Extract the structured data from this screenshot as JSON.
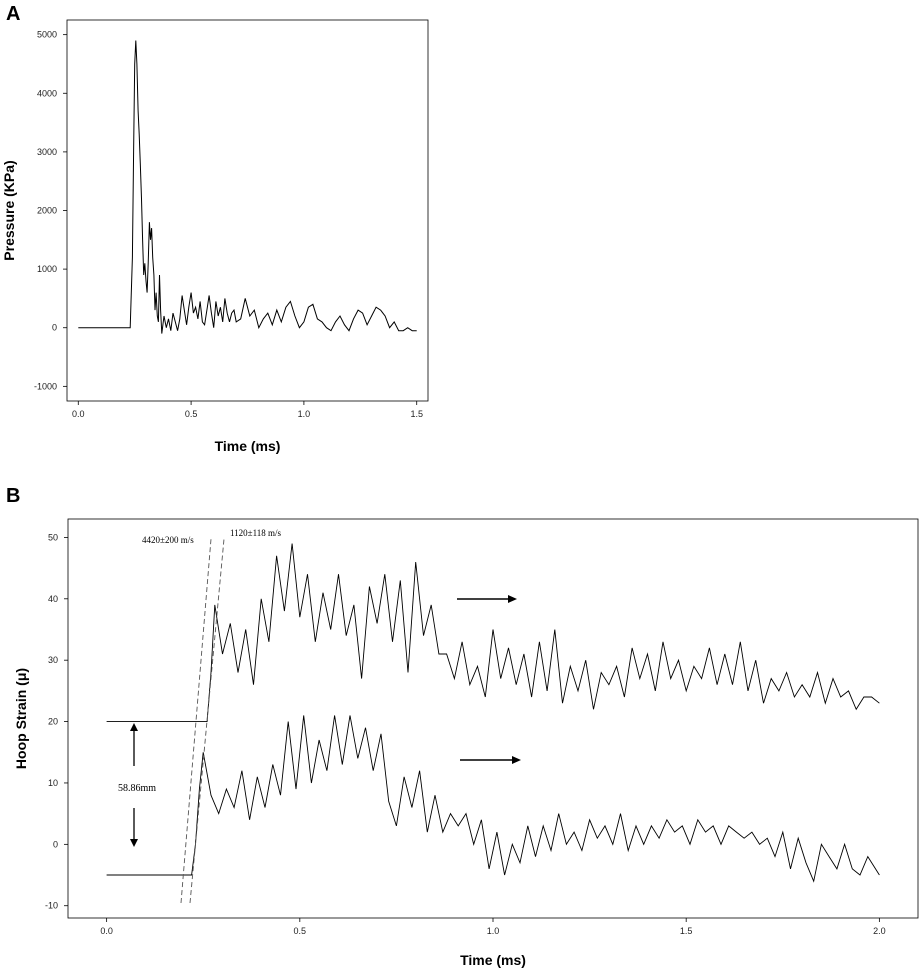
{
  "chart_data": [
    {
      "panel_label": "A",
      "type": "line",
      "xlabel": "Time (ms)",
      "ylabel": "Pressure (KPa)",
      "xlim": [
        -0.05,
        1.55
      ],
      "ylim": [
        -1250,
        5250
      ],
      "xticks": [
        0.0,
        0.5,
        1.0,
        1.5
      ],
      "xtick_labels": [
        "0.0",
        "0.5",
        "1.0",
        "1.5"
      ],
      "yticks": [
        -1000,
        0,
        1000,
        2000,
        3000,
        4000,
        5000
      ],
      "ytick_labels": [
        "-1000",
        "0",
        "1000",
        "2000",
        "3000",
        "4000",
        "5000"
      ],
      "grid": false,
      "series": [
        {
          "color": "#000000",
          "x": [
            0.0,
            0.23,
            0.24,
            0.245,
            0.25,
            0.255,
            0.26,
            0.265,
            0.27,
            0.275,
            0.28,
            0.285,
            0.29,
            0.295,
            0.3,
            0.305,
            0.31,
            0.315,
            0.32,
            0.325,
            0.33,
            0.335,
            0.34,
            0.345,
            0.35,
            0.355,
            0.36,
            0.365,
            0.37,
            0.38,
            0.39,
            0.4,
            0.41,
            0.42,
            0.43,
            0.44,
            0.45,
            0.46,
            0.47,
            0.48,
            0.49,
            0.5,
            0.51,
            0.52,
            0.53,
            0.54,
            0.55,
            0.56,
            0.57,
            0.58,
            0.59,
            0.6,
            0.61,
            0.62,
            0.63,
            0.64,
            0.65,
            0.66,
            0.67,
            0.68,
            0.69,
            0.7,
            0.72,
            0.74,
            0.76,
            0.78,
            0.8,
            0.82,
            0.84,
            0.86,
            0.88,
            0.9,
            0.92,
            0.94,
            0.96,
            0.98,
            1.0,
            1.02,
            1.04,
            1.06,
            1.08,
            1.1,
            1.12,
            1.14,
            1.16,
            1.18,
            1.2,
            1.22,
            1.24,
            1.26,
            1.28,
            1.3,
            1.32,
            1.34,
            1.36,
            1.38,
            1.4,
            1.42,
            1.44,
            1.46,
            1.48,
            1.5
          ],
          "y": [
            0,
            0,
            1200,
            3000,
            4500,
            4900,
            4500,
            3700,
            3300,
            2800,
            2200,
            1500,
            900,
            1100,
            800,
            600,
            1100,
            1800,
            1500,
            1700,
            1200,
            900,
            300,
            600,
            200,
            100,
            900,
            300,
            -100,
            200,
            0,
            150,
            -50,
            250,
            100,
            -50,
            150,
            550,
            300,
            50,
            350,
            600,
            250,
            350,
            150,
            450,
            100,
            50,
            300,
            550,
            250,
            0,
            450,
            200,
            350,
            100,
            500,
            250,
            100,
            250,
            300,
            100,
            150,
            500,
            200,
            300,
            0,
            150,
            250,
            50,
            300,
            100,
            350,
            450,
            200,
            0,
            100,
            350,
            400,
            150,
            100,
            0,
            -50,
            100,
            200,
            50,
            -50,
            150,
            300,
            250,
            50,
            200,
            350,
            300,
            200,
            0,
            100,
            -50,
            -50,
            0,
            -50,
            -50
          ]
        }
      ]
    },
    {
      "panel_label": "B",
      "type": "line",
      "xlabel": "Time (ms)",
      "ylabel": "Hoop Strain (μ)",
      "xlim": [
        -0.1,
        2.1
      ],
      "ylim": [
        -12,
        53
      ],
      "xticks": [
        0.0,
        0.5,
        1.0,
        1.5,
        2.0
      ],
      "xtick_labels": [
        "0.0",
        "0.5",
        "1.0",
        "1.5",
        "2.0"
      ],
      "yticks": [
        -10,
        0,
        10,
        20,
        30,
        40,
        50
      ],
      "ytick_labels": [
        "-10",
        "0",
        "10",
        "20",
        "30",
        "40",
        "50"
      ],
      "grid": false,
      "annotations": {
        "velocity_1": "4420±200 m/s",
        "velocity_2": "1120±118 m/s",
        "separation": "58.86mm"
      },
      "series": [
        {
          "color": "#000000",
          "x": [
            0.0,
            0.26,
            0.27,
            0.28,
            0.3,
            0.32,
            0.34,
            0.36,
            0.38,
            0.4,
            0.42,
            0.44,
            0.46,
            0.48,
            0.5,
            0.52,
            0.54,
            0.56,
            0.58,
            0.6,
            0.62,
            0.64,
            0.66,
            0.68,
            0.7,
            0.72,
            0.74,
            0.76,
            0.78,
            0.8,
            0.82,
            0.84,
            0.86,
            0.88,
            0.9,
            0.92,
            0.94,
            0.96,
            0.98,
            1.0,
            1.02,
            1.04,
            1.06,
            1.08,
            1.1,
            1.12,
            1.14,
            1.16,
            1.18,
            1.2,
            1.22,
            1.24,
            1.26,
            1.28,
            1.3,
            1.32,
            1.34,
            1.36,
            1.38,
            1.4,
            1.42,
            1.44,
            1.46,
            1.48,
            1.5,
            1.52,
            1.54,
            1.56,
            1.58,
            1.6,
            1.62,
            1.64,
            1.66,
            1.68,
            1.7,
            1.72,
            1.74,
            1.76,
            1.78,
            1.8,
            1.82,
            1.84,
            1.86,
            1.88,
            1.9,
            1.92,
            1.94,
            1.96,
            1.98,
            2.0
          ],
          "y": [
            20,
            20,
            28,
            39,
            31,
            36,
            28,
            35,
            26,
            40,
            33,
            47,
            38,
            49,
            37,
            44,
            33,
            41,
            35,
            44,
            34,
            39,
            27,
            42,
            36,
            44,
            33,
            43,
            28,
            46,
            34,
            39,
            31,
            31,
            27,
            33,
            26,
            29,
            24,
            35,
            27,
            32,
            26,
            31,
            24,
            33,
            25,
            35,
            23,
            29,
            25,
            30,
            22,
            28,
            26,
            29,
            24,
            32,
            27,
            31,
            25,
            33,
            27,
            30,
            25,
            29,
            27,
            32,
            26,
            31,
            26,
            33,
            25,
            30,
            23,
            27,
            25,
            28,
            24,
            26,
            24,
            28,
            23,
            27,
            24,
            25,
            22,
            24,
            24,
            23
          ]
        },
        {
          "color": "#000000",
          "x": [
            0.0,
            0.22,
            0.23,
            0.24,
            0.25,
            0.27,
            0.29,
            0.31,
            0.33,
            0.35,
            0.37,
            0.39,
            0.41,
            0.43,
            0.45,
            0.47,
            0.49,
            0.51,
            0.53,
            0.55,
            0.57,
            0.59,
            0.61,
            0.63,
            0.65,
            0.67,
            0.69,
            0.71,
            0.73,
            0.75,
            0.77,
            0.79,
            0.81,
            0.83,
            0.85,
            0.87,
            0.89,
            0.91,
            0.93,
            0.95,
            0.97,
            0.99,
            1.01,
            1.03,
            1.05,
            1.07,
            1.09,
            1.11,
            1.13,
            1.15,
            1.17,
            1.19,
            1.21,
            1.23,
            1.25,
            1.27,
            1.29,
            1.31,
            1.33,
            1.35,
            1.37,
            1.39,
            1.41,
            1.43,
            1.45,
            1.47,
            1.49,
            1.51,
            1.53,
            1.55,
            1.57,
            1.59,
            1.61,
            1.63,
            1.65,
            1.67,
            1.69,
            1.71,
            1.73,
            1.75,
            1.77,
            1.79,
            1.81,
            1.83,
            1.85,
            1.87,
            1.89,
            1.91,
            1.93,
            1.95,
            1.97,
            2.0
          ],
          "y": [
            -5,
            -5,
            0,
            9,
            15,
            8,
            5,
            9,
            6,
            12,
            4,
            11,
            6,
            13,
            8,
            20,
            9,
            21,
            10,
            17,
            12,
            21,
            13,
            21,
            14,
            19,
            12,
            18,
            7,
            3,
            11,
            6,
            12,
            2,
            8,
            2,
            5,
            3,
            5,
            0,
            4,
            -4,
            2,
            -5,
            0,
            -3,
            3,
            -2,
            3,
            -1,
            5,
            0,
            2,
            -1,
            4,
            1,
            3,
            0,
            5,
            -1,
            3,
            0,
            3,
            1,
            4,
            2,
            3,
            0,
            4,
            2,
            3,
            0,
            3,
            2,
            1,
            2,
            0,
            1,
            -2,
            2,
            -4,
            1,
            -3,
            -6,
            0,
            -2,
            -4,
            0,
            -4,
            -5,
            -2,
            -5
          ]
        }
      ]
    }
  ]
}
